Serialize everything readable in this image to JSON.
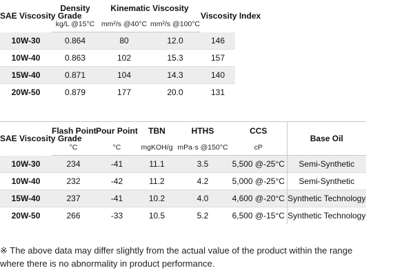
{
  "table1": {
    "headers": {
      "grade": "SAE Viscosity Grade",
      "density": "Density",
      "kinematic": "Kinematic Viscosity",
      "vi": "Viscosity Index"
    },
    "units": {
      "density": "kg/L @15°C",
      "kv40": "mm²/s @40°C",
      "kv100": "mm²/s @100°C"
    },
    "rows": [
      [
        "10W-30",
        "0.864",
        "80",
        "12.0",
        "146"
      ],
      [
        "10W-40",
        "0.863",
        "102",
        "15.3",
        "157"
      ],
      [
        "15W-40",
        "0.871",
        "104",
        "14.3",
        "140"
      ],
      [
        "20W-50",
        "0.879",
        "177",
        "20.0",
        "131"
      ]
    ]
  },
  "table2": {
    "headers": {
      "grade": "SAE Viscosity Grade",
      "flash": "Flash Point",
      "pour": "Pour Point",
      "tbn": "TBN",
      "hths": "HTHS",
      "ccs": "CCS",
      "base": "Base Oil"
    },
    "units": {
      "flash": "°C",
      "pour": "°C",
      "tbn": "mgKOH/g",
      "hths": "mPa·s @150°C",
      "ccs": "cP"
    },
    "rows": [
      [
        "10W-30",
        "234",
        "-41",
        "11.1",
        "3.5",
        "5,500 @-25°C",
        "Semi-Synthetic"
      ],
      [
        "10W-40",
        "232",
        "-42",
        "11.2",
        "4.2",
        "5,000 @-25°C",
        "Semi-Synthetic"
      ],
      [
        "15W-40",
        "237",
        "-41",
        "10.2",
        "4.0",
        "4,600 @-20°C",
        "Synthetic Technology"
      ],
      [
        "20W-50",
        "266",
        "-33",
        "10.5",
        "5.2",
        "6,500 @-15°C",
        "Synthetic Technology"
      ]
    ]
  },
  "note": {
    "line1": "※ The above data may differ slightly from the actual value of the product within the range",
    "line2": "where there is no abnormality in product performance."
  }
}
